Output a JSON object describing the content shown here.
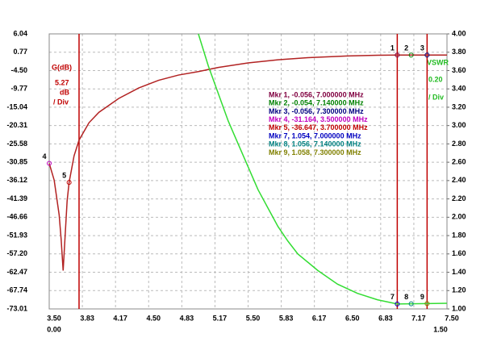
{
  "chart_data": {
    "type": "line",
    "xlim": [
      3.5,
      7.5
    ],
    "xticks": [
      {
        "value": 3.5,
        "label": "3.50"
      },
      {
        "value": 3.8333,
        "label": "3.83"
      },
      {
        "value": 4.1667,
        "label": "4.17"
      },
      {
        "value": 4.5,
        "label": "4.50"
      },
      {
        "value": 4.8333,
        "label": "4.83"
      },
      {
        "value": 5.1667,
        "label": "5.17"
      },
      {
        "value": 5.5,
        "label": "5.50"
      },
      {
        "value": 5.8333,
        "label": "5.83"
      },
      {
        "value": 6.1667,
        "label": "6.17"
      },
      {
        "value": 6.5,
        "label": "6.50"
      },
      {
        "value": 6.8333,
        "label": "6.83"
      },
      {
        "value": 7.1667,
        "label": "7.17"
      },
      {
        "value": 7.5,
        "label": "7.50"
      }
    ],
    "x_sub_labels": [
      "0.00",
      "1.50"
    ],
    "ylim": [
      -73.01,
      6.04
    ],
    "yticks": [
      6.04,
      0.77,
      {
        "value": -4.5,
        "label": "-4.50"
      },
      -9.77,
      -15.04,
      -20.31,
      -25.58,
      -30.85,
      -36.12,
      -41.39,
      -46.66,
      -51.93,
      {
        "value": -57.2,
        "label": "-57.20"
      },
      -62.47,
      -67.74,
      -73.01
    ],
    "y2lim": [
      1,
      4
    ],
    "y2ticks": [
      {
        "value": 4,
        "label": "4.00"
      },
      {
        "value": 3.8,
        "label": "3.80"
      },
      {
        "value": 3.6,
        "label": "3.60"
      },
      {
        "value": 3.4,
        "label": "3.40"
      },
      {
        "value": 3.2,
        "label": "3.20"
      },
      {
        "value": 3,
        "label": "3.00"
      },
      {
        "value": 2.8,
        "label": "2.80"
      },
      {
        "value": 2.6,
        "label": "2.60"
      },
      {
        "value": 2.4,
        "label": "2.40"
      },
      {
        "value": 2.2,
        "label": "2.20"
      },
      {
        "value": 2,
        "label": "2.00"
      },
      {
        "value": 1.8,
        "label": "1.80"
      },
      {
        "value": 1.6,
        "label": "1.60"
      },
      {
        "value": 1.4,
        "label": "1.40"
      },
      {
        "value": 1.2,
        "label": "1.20"
      },
      {
        "value": 1,
        "label": "1.00"
      }
    ],
    "grid": true,
    "y_axis_texts": [
      "G(dB)",
      "5.27",
      "dB",
      "/ Div"
    ],
    "y2_axis_texts": [
      "VSWR",
      "0.20",
      "/ Div"
    ],
    "vlines": {
      "color": "#c00000",
      "x": [
        3.8,
        7.0,
        7.3
      ]
    },
    "series": [
      {
        "name": "G(dB)",
        "color": "#b22222",
        "x": [
          3.5,
          3.55,
          3.6,
          3.62,
          3.64,
          3.66,
          3.68,
          3.7,
          3.75,
          3.8,
          3.9,
          4.0,
          4.2,
          4.4,
          4.6,
          4.8,
          5.0,
          5.2,
          5.5,
          5.8,
          6.1,
          6.5,
          6.8,
          7.0,
          7.14,
          7.3,
          7.5
        ],
        "values": [
          -31.164,
          -36,
          -46,
          -53,
          -62,
          -52,
          -42,
          -36.647,
          -29,
          -24.5,
          -19.5,
          -16.5,
          -12.5,
          -9.5,
          -7.3,
          -5.8,
          -4.8,
          -3.6,
          -2.3,
          -1.4,
          -0.8,
          -0.3,
          -0.1,
          -0.056,
          -0.054,
          -0.056,
          -0.06
        ]
      },
      {
        "name": "VSWR",
        "color": "#33dd33",
        "axis": "y2",
        "x": [
          5.0,
          5.1,
          5.2,
          5.3,
          5.4,
          5.5,
          5.6,
          5.7,
          5.8,
          5.9,
          6.0,
          6.2,
          6.4,
          6.6,
          6.8,
          7.0,
          7.14,
          7.3,
          7.5
        ],
        "values": [
          4.0,
          3.65,
          3.35,
          3.05,
          2.8,
          2.55,
          2.3,
          2.1,
          1.9,
          1.74,
          1.6,
          1.42,
          1.27,
          1.17,
          1.1,
          1.054,
          1.056,
          1.058,
          1.062
        ]
      }
    ],
    "markers": [
      {
        "label": "1",
        "x": 7.0,
        "y": -0.056,
        "color": "#800040",
        "text": "Mkr 1, -0.056, 7.000000 MHz"
      },
      {
        "label": "2",
        "x": 7.14,
        "y": -0.054,
        "color": "#008000",
        "text": "Mkr 2, -0.054, 7.140000 MHz"
      },
      {
        "label": "3",
        "x": 7.3,
        "y": -0.056,
        "color": "#000080",
        "text": "Mkr 3, -0.056, 7.300000 MHz"
      },
      {
        "label": "4",
        "x": 3.5,
        "y": -31.164,
        "color": "#c000c0",
        "text": "Mkr 4, -31.164, 3.500000 MHz"
      },
      {
        "label": "5",
        "x": 3.7,
        "y": -36.647,
        "color": "#c00000",
        "text": "Mkr 5, -36.647, 3.700000 MHz"
      },
      {
        "label": "7",
        "x": 7.0,
        "y": 1.054,
        "axis": "y2",
        "color": "#0000c0",
        "text": "Mkr 7, 1.054, 7.000000 MHz"
      },
      {
        "label": "8",
        "x": 7.14,
        "y": 1.056,
        "axis": "y2",
        "color": "#008080",
        "text": "Mkr 8, 1.056, 7.140000 MHz"
      },
      {
        "label": "9",
        "x": 7.3,
        "y": 1.058,
        "axis": "y2",
        "color": "#808000",
        "text": "Mkr 9, 1.058, 7.300000 MHz"
      }
    ]
  }
}
